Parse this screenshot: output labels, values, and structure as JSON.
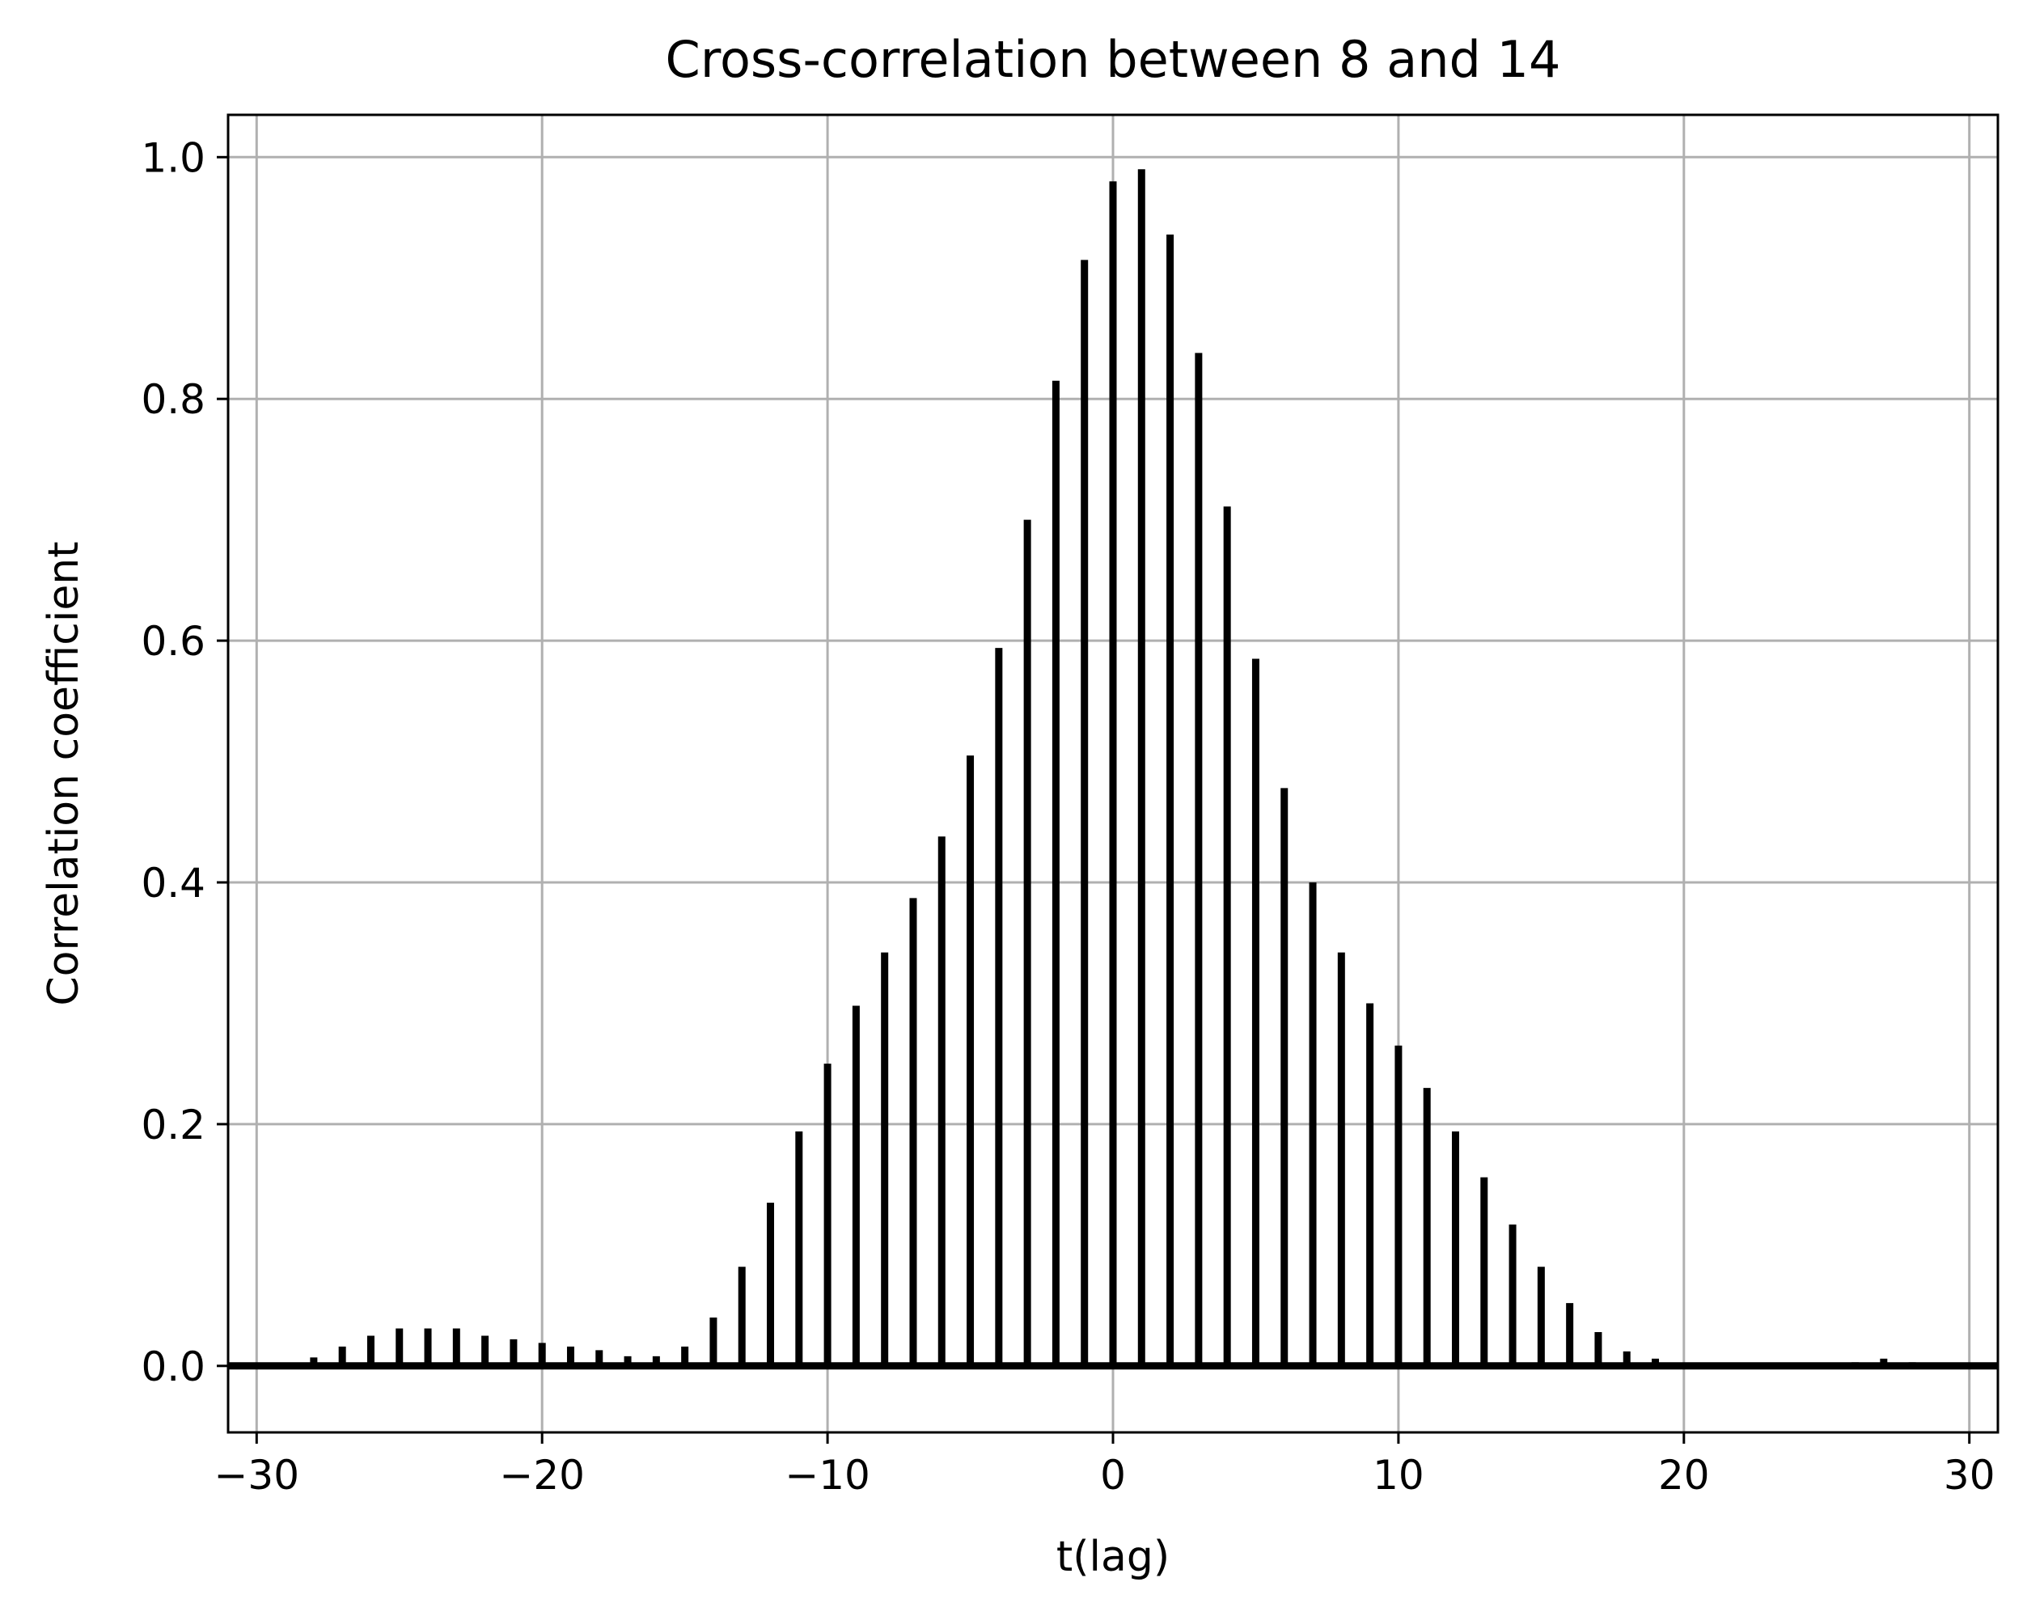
{
  "chart_data": {
    "type": "bar",
    "title": "Cross-correlation between 8 and 14",
    "xlabel": "t(lag)",
    "ylabel": "Correlation coefficient",
    "xlim": [
      -31,
      31
    ],
    "ylim": [
      -0.055,
      1.035
    ],
    "grid": true,
    "xticks": [
      -30,
      -20,
      -10,
      0,
      10,
      20,
      30
    ],
    "xtick_labels": [
      "−30",
      "−20",
      "−10",
      "0",
      "10",
      "20",
      "30"
    ],
    "yticks": [
      0.0,
      0.2,
      0.4,
      0.6,
      0.8,
      1.0
    ],
    "ytick_labels": [
      "0.0",
      "0.2",
      "0.4",
      "0.6",
      "0.8",
      "1.0"
    ],
    "bar_color": "#000000",
    "hline_y": 0,
    "x": [
      -30,
      -29,
      -28,
      -27,
      -26,
      -25,
      -24,
      -23,
      -22,
      -21,
      -20,
      -19,
      -18,
      -17,
      -16,
      -15,
      -14,
      -13,
      -12,
      -11,
      -10,
      -9,
      -8,
      -7,
      -6,
      -5,
      -4,
      -3,
      -2,
      -1,
      0,
      1,
      2,
      3,
      4,
      5,
      6,
      7,
      8,
      9,
      10,
      11,
      12,
      13,
      14,
      15,
      16,
      17,
      18,
      19,
      20,
      21,
      22,
      23,
      24,
      25,
      26,
      27,
      28,
      29,
      30
    ],
    "values": [
      0,
      0,
      0.007,
      0.016,
      0.025,
      0.031,
      0.031,
      0.031,
      0.025,
      0.022,
      0.019,
      0.016,
      0.013,
      0.008,
      0.008,
      0.016,
      0.04,
      0.082,
      0.135,
      0.194,
      0.25,
      0.298,
      0.342,
      0.387,
      0.438,
      0.505,
      0.594,
      0.7,
      0.815,
      0.915,
      0.98,
      0.99,
      0.936,
      0.838,
      0.711,
      0.585,
      0.478,
      0.4,
      0.342,
      0.3,
      0.265,
      0.23,
      0.194,
      0.156,
      0.117,
      0.082,
      0.052,
      0.028,
      0.012,
      0.006,
      0,
      0,
      0,
      0,
      0,
      0,
      0.003,
      0.006,
      0.003,
      0,
      0
    ]
  }
}
